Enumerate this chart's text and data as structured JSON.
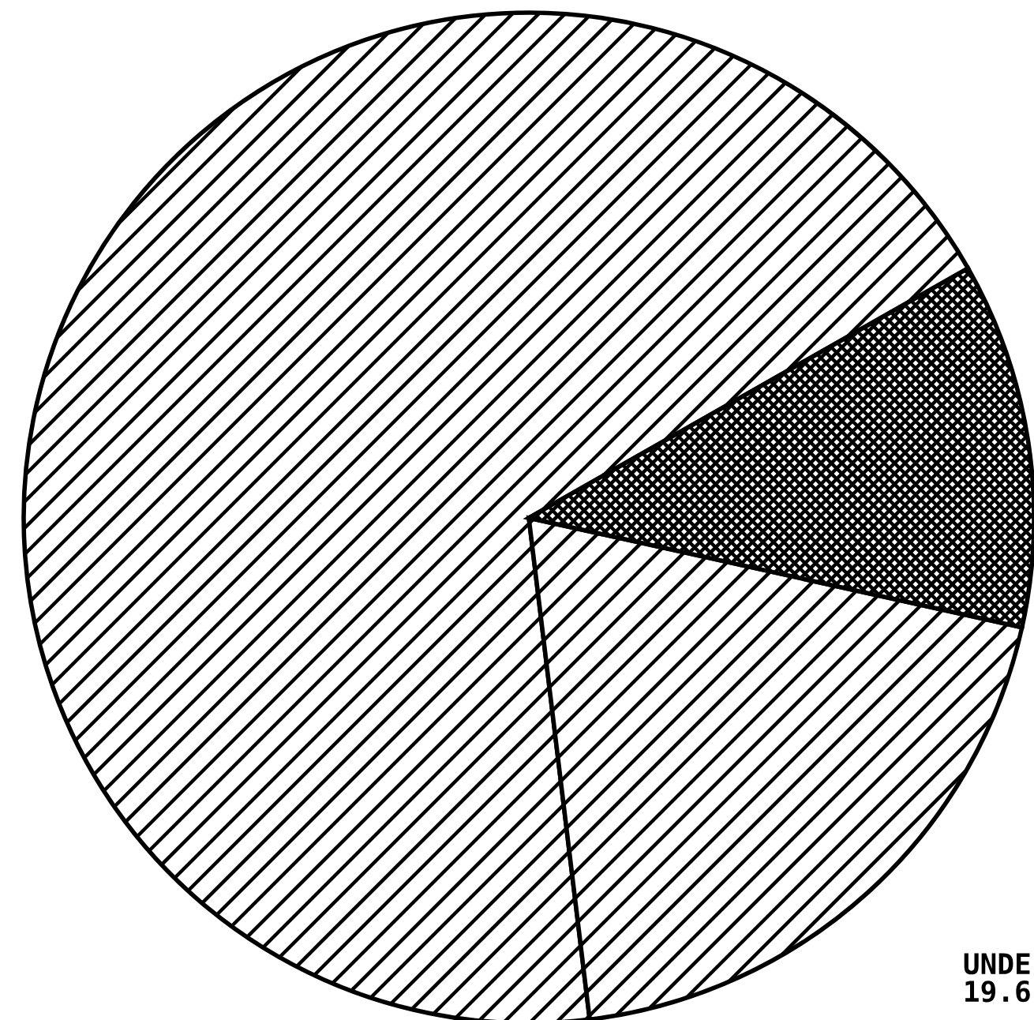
{
  "chart_data": {
    "type": "pie",
    "categories": [
      null,
      "UNDE",
      null
    ],
    "values": [
      68.7,
      19.6,
      11.7
    ],
    "value_labels": [
      null,
      "19.6",
      null
    ],
    "colors": [
      "#000000",
      "#000000",
      "#000000"
    ]
  }
}
